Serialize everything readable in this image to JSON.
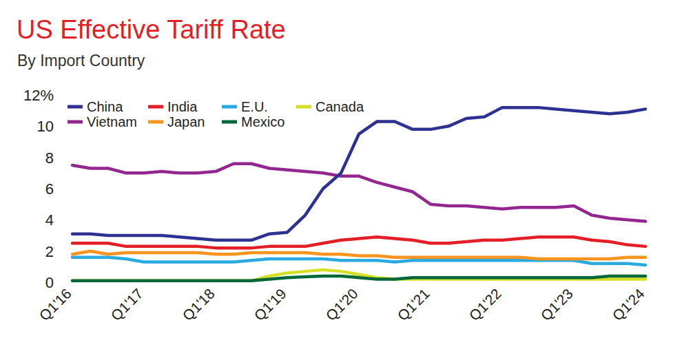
{
  "chart_data": {
    "type": "line",
    "title": "US Effective Tariff Rate",
    "subtitle": "By Import Country",
    "categories": [
      "Q1'16",
      null,
      null,
      null,
      "Q1'17",
      null,
      null,
      null,
      "Q1'18",
      null,
      null,
      null,
      "Q1'19",
      null,
      null,
      null,
      "Q1'20",
      null,
      null,
      null,
      "Q1'21",
      null,
      null,
      null,
      "Q1'22",
      null,
      null,
      null,
      "Q1'23",
      null,
      null,
      null,
      "Q1'24"
    ],
    "series": [
      {
        "name": "China",
        "color": "#2e3192",
        "values": [
          3.1,
          3.1,
          3.0,
          3.0,
          3.0,
          3.0,
          2.9,
          2.8,
          2.7,
          2.7,
          2.7,
          3.1,
          3.2,
          4.3,
          6.0,
          7.0,
          9.5,
          10.3,
          10.3,
          9.8,
          9.8,
          10.0,
          10.5,
          10.6,
          11.2,
          11.2,
          11.2,
          11.1,
          11.0,
          10.9,
          10.8,
          10.9,
          11.1
        ]
      },
      {
        "name": "Vietnam",
        "color": "#92278f",
        "values": [
          7.5,
          7.3,
          7.3,
          7.0,
          7.0,
          7.1,
          7.0,
          7.0,
          7.1,
          7.6,
          7.6,
          7.3,
          7.2,
          7.1,
          7.0,
          6.8,
          6.8,
          6.4,
          6.1,
          5.8,
          5.0,
          4.9,
          4.9,
          4.8,
          4.7,
          4.8,
          4.8,
          4.8,
          4.9,
          4.3,
          4.1,
          4.0,
          3.9
        ]
      },
      {
        "name": "India",
        "color": "#e31e24",
        "values": [
          2.5,
          2.5,
          2.5,
          2.3,
          2.3,
          2.3,
          2.3,
          2.3,
          2.2,
          2.2,
          2.2,
          2.3,
          2.3,
          2.3,
          2.5,
          2.7,
          2.8,
          2.9,
          2.8,
          2.7,
          2.5,
          2.5,
          2.6,
          2.7,
          2.7,
          2.8,
          2.9,
          2.9,
          2.9,
          2.7,
          2.6,
          2.4,
          2.3
        ]
      },
      {
        "name": "Japan",
        "color": "#f7941d",
        "values": [
          1.8,
          2.0,
          1.8,
          1.9,
          1.9,
          1.9,
          1.9,
          1.9,
          1.8,
          1.8,
          1.9,
          1.9,
          1.9,
          1.9,
          1.8,
          1.8,
          1.7,
          1.7,
          1.6,
          1.6,
          1.6,
          1.6,
          1.6,
          1.6,
          1.6,
          1.6,
          1.5,
          1.5,
          1.5,
          1.5,
          1.5,
          1.6,
          1.6
        ]
      },
      {
        "name": "E.U.",
        "color": "#29abe2",
        "values": [
          1.6,
          1.6,
          1.6,
          1.5,
          1.3,
          1.3,
          1.3,
          1.3,
          1.3,
          1.3,
          1.4,
          1.5,
          1.5,
          1.5,
          1.5,
          1.4,
          1.4,
          1.4,
          1.3,
          1.4,
          1.4,
          1.4,
          1.4,
          1.4,
          1.4,
          1.4,
          1.4,
          1.4,
          1.4,
          1.2,
          1.2,
          1.2,
          1.1
        ]
      },
      {
        "name": "Mexico",
        "color": "#006838",
        "values": [
          0.1,
          0.1,
          0.1,
          0.1,
          0.1,
          0.1,
          0.1,
          0.1,
          0.1,
          0.1,
          0.1,
          0.2,
          0.3,
          0.35,
          0.4,
          0.4,
          0.3,
          0.2,
          0.2,
          0.3,
          0.3,
          0.3,
          0.3,
          0.3,
          0.3,
          0.3,
          0.3,
          0.3,
          0.3,
          0.3,
          0.4,
          0.4,
          0.4
        ]
      },
      {
        "name": "Canada",
        "color": "#d7df23",
        "values": [
          0.1,
          0.1,
          0.1,
          0.1,
          0.1,
          0.1,
          0.1,
          0.1,
          0.1,
          0.1,
          0.1,
          0.4,
          0.6,
          0.7,
          0.8,
          0.7,
          0.5,
          0.3,
          0.2,
          0.2,
          0.2,
          0.2,
          0.2,
          0.2,
          0.2,
          0.2,
          0.2,
          0.2,
          0.2,
          0.2,
          0.2,
          0.2,
          0.2
        ]
      }
    ],
    "ylim": [
      0,
      12
    ],
    "yticks": [
      0,
      2,
      4,
      6,
      8,
      10,
      {
        "value": 12,
        "label": "12%"
      }
    ],
    "grid": false,
    "legend": "top-left"
  }
}
